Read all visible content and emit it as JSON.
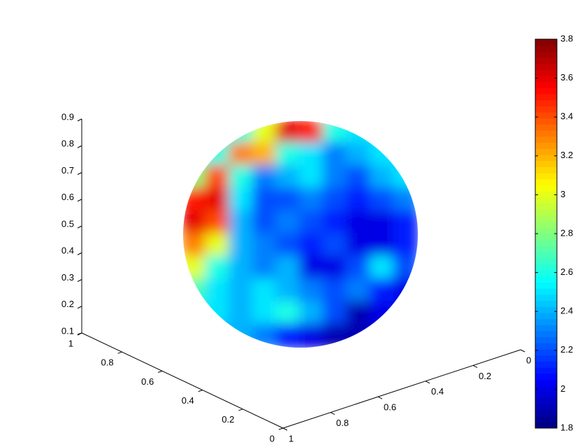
{
  "chart_data": {
    "type": "surface",
    "colormap": "jet",
    "values": [
      [
        2.5,
        2.5,
        2.6,
        3.0,
        3.6,
        3.5,
        2.6,
        2.5,
        2.5,
        2.5
      ],
      [
        2.6,
        2.6,
        3.3,
        3.2,
        2.6,
        2.5,
        2.3,
        2.4,
        2.5,
        2.5
      ],
      [
        2.8,
        3.4,
        2.6,
        2.3,
        2.4,
        2.5,
        2.3,
        2.2,
        2.4,
        2.5
      ],
      [
        3.5,
        3.6,
        2.5,
        2.2,
        2.2,
        2.3,
        2.2,
        2.1,
        2.2,
        2.3
      ],
      [
        3.6,
        3.4,
        2.4,
        2.2,
        2.3,
        2.2,
        2.1,
        2.0,
        2.0,
        2.1
      ],
      [
        3.3,
        3.0,
        2.4,
        2.3,
        2.2,
        2.1,
        2.2,
        2.0,
        2.0,
        2.1
      ],
      [
        3.0,
        2.6,
        2.4,
        2.3,
        2.4,
        2.0,
        2.0,
        2.2,
        2.5,
        2.2
      ],
      [
        2.7,
        2.5,
        2.4,
        2.5,
        2.4,
        2.3,
        2.2,
        2.3,
        2.1,
        2.0
      ],
      [
        2.5,
        2.5,
        2.4,
        2.5,
        2.6,
        2.4,
        2.2,
        1.9,
        2.0,
        2.1
      ],
      [
        2.4,
        2.4,
        2.4,
        2.3,
        2.1,
        2.0,
        1.9,
        1.9,
        2.0,
        2.1
      ]
    ],
    "xlim": [
      0,
      1
    ],
    "xticks": [
      0,
      0.2,
      0.4,
      0.6,
      0.8,
      1
    ],
    "ylim": [
      0,
      1
    ],
    "yticks": [
      0,
      0.2,
      0.4,
      0.6,
      0.8,
      1
    ],
    "zlim": [
      0.1,
      0.9
    ],
    "zticks": [
      0.1,
      0.2,
      0.3,
      0.4,
      0.5,
      0.6,
      0.7,
      0.8,
      0.9
    ],
    "clim": [
      1.8,
      3.8
    ],
    "cticks": [
      1.8,
      2,
      2.2,
      2.4,
      2.6,
      2.8,
      3,
      3.2,
      3.4,
      3.6,
      3.8
    ]
  }
}
